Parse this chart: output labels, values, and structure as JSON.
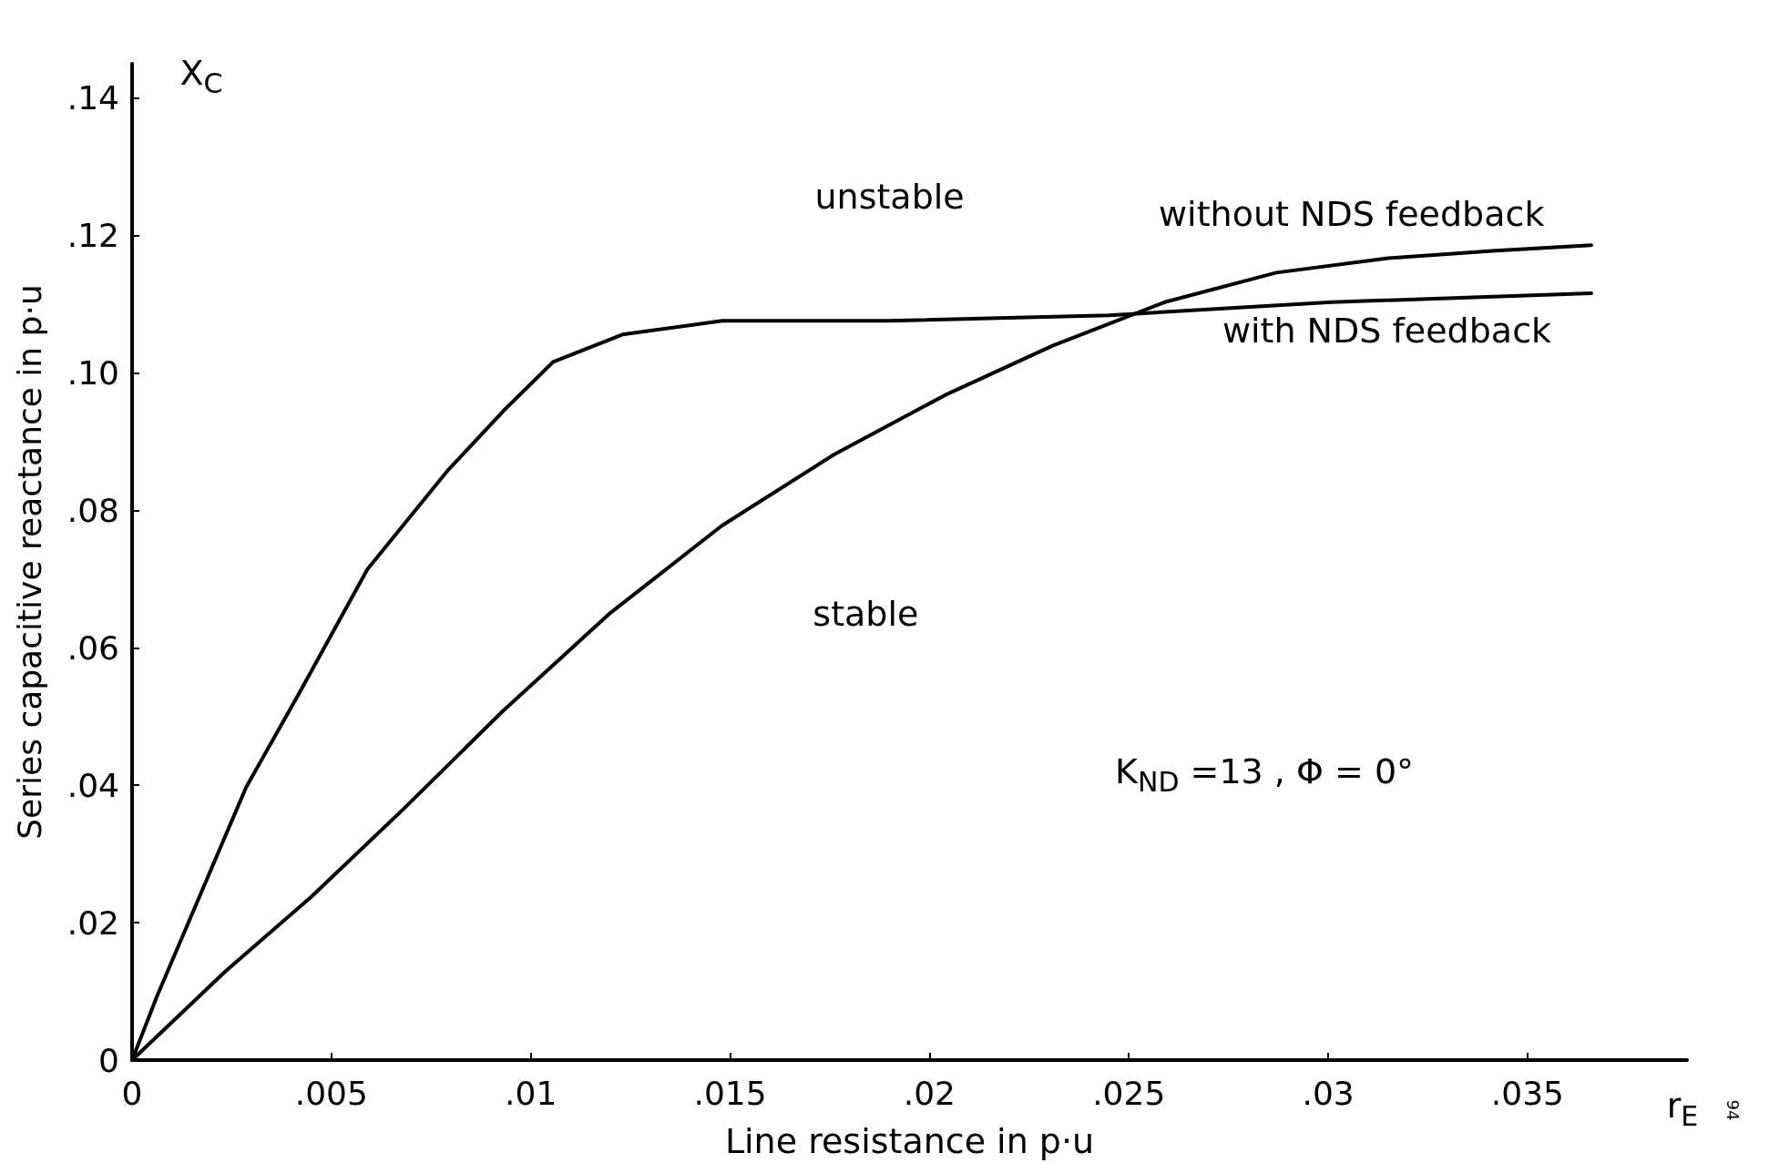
{
  "chart_data": {
    "type": "line",
    "xlabel": "Line resistance in p·u",
    "ylabel": "Series capacitive reactance in p·u",
    "x": [
      0,
      0.00064,
      0.00286,
      0.00425,
      0.0059,
      0.0079,
      0.0093,
      0.01056,
      0.0123,
      0.0148,
      0.019,
      0.0245,
      0.0301,
      0.0366
    ],
    "series": [
      {
        "name": "with NDS feedback",
        "color": "#000000",
        "values": [
          0,
          0.0095,
          0.0397,
          0.054,
          0.0714,
          0.0857,
          0.0944,
          0.1016,
          0.1056,
          0.1076,
          0.1076,
          0.1084,
          0.1103,
          0.1116
        ]
      },
      {
        "name": "without NDS feedback",
        "color": "#000000",
        "x": [
          0,
          0.0023,
          0.0045,
          0.0068,
          0.0093,
          0.012,
          0.0148,
          0.0176,
          0.0204,
          0.0231,
          0.0259,
          0.0287,
          0.0315,
          0.0342,
          0.0366
        ],
        "values": [
          0,
          0.0127,
          0.0238,
          0.0365,
          0.0508,
          0.0651,
          0.0778,
          0.0881,
          0.0968,
          0.104,
          0.1103,
          0.1146,
          0.1167,
          0.1178,
          0.1186
        ]
      }
    ],
    "xlim": [
      0,
      0.039
    ],
    "ylim": [
      0,
      0.145
    ],
    "xticks": [
      {
        "value": 0,
        "label": "0"
      },
      {
        "value": 0.005,
        "label": ".005"
      },
      {
        "value": 0.01,
        "label": ".01"
      },
      {
        "value": 0.015,
        "label": ".015"
      },
      {
        "value": 0.02,
        "label": ".02"
      },
      {
        "value": 0.025,
        "label": ".025"
      },
      {
        "value": 0.03,
        "label": ".03"
      },
      {
        "value": 0.035,
        "label": ".035"
      }
    ],
    "yticks": [
      {
        "value": 0,
        "label": "0"
      },
      {
        "value": 0.02,
        "label": ".02"
      },
      {
        "value": 0.04,
        "label": ".04"
      },
      {
        "value": 0.06,
        "label": ".06"
      },
      {
        "value": 0.08,
        "label": ".08"
      },
      {
        "value": 0.1,
        "label": ".10"
      },
      {
        "value": 0.12,
        "label": ".12"
      },
      {
        "value": 0.14,
        "label": ".14"
      }
    ],
    "annotations": [
      "unstable",
      "stable",
      "K$_{ND}$ =13 , Φ = 0°",
      "X$_{C}$",
      "r$_{E}$",
      "94"
    ],
    "grid": false,
    "marker": "none",
    "line_style": "solid",
    "legend": false
  }
}
